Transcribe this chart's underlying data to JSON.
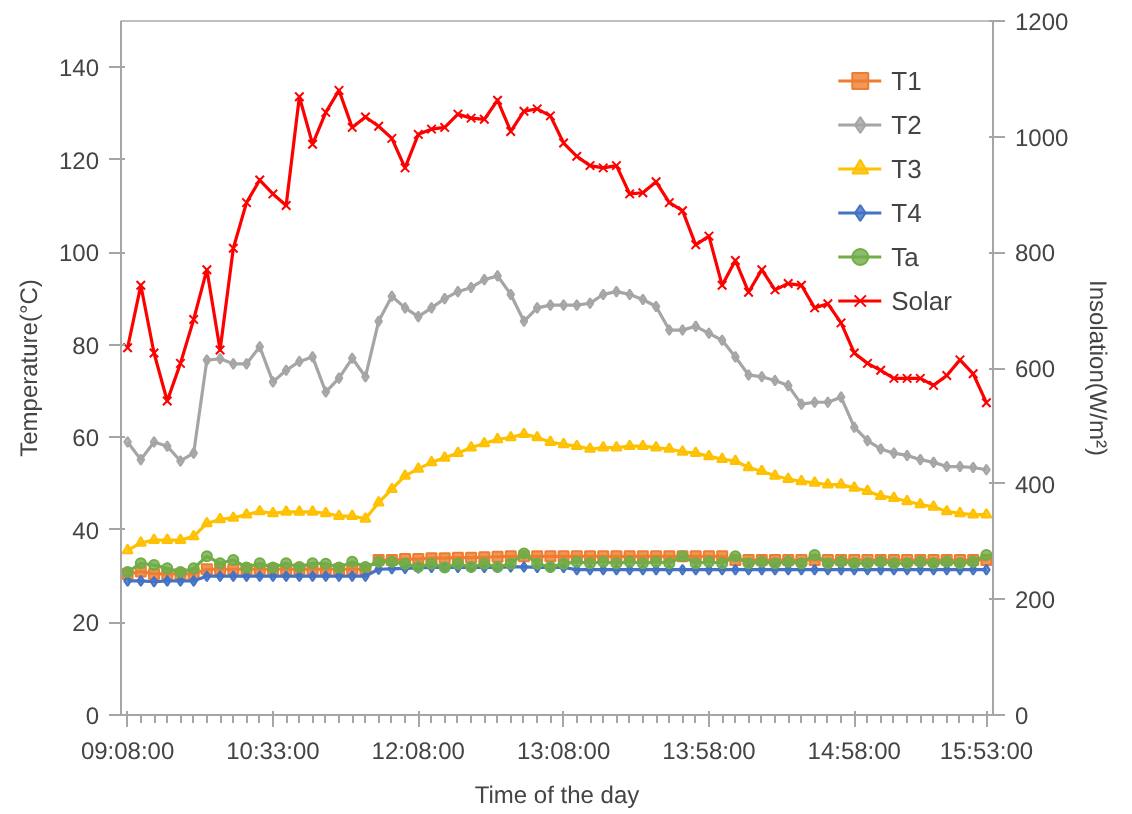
{
  "chart_data": {
    "type": "line",
    "xlabel": "Time of the day",
    "ylabel": "Temperature(°C)",
    "y2label": "Insolation(W/m²)",
    "categories": [
      "09:08:00",
      null,
      null,
      null,
      null,
      null,
      null,
      null,
      null,
      null,
      null,
      "10:33:00",
      null,
      null,
      null,
      null,
      null,
      null,
      null,
      null,
      null,
      null,
      "12:08:00",
      null,
      null,
      null,
      null,
      null,
      null,
      null,
      null,
      null,
      null,
      "13:08:00",
      null,
      null,
      null,
      null,
      null,
      null,
      null,
      null,
      null,
      null,
      "13:58:00",
      null,
      null,
      null,
      null,
      null,
      null,
      null,
      null,
      null,
      null,
      "14:58:00",
      null,
      null,
      null,
      null,
      null,
      null,
      null,
      null,
      null,
      "15:53:00"
    ],
    "ylim": [
      0,
      150
    ],
    "yticks": [
      0,
      20,
      40,
      60,
      80,
      100,
      120,
      140
    ],
    "y2lim": [
      0,
      1200
    ],
    "y2ticks": [
      0,
      200,
      400,
      600,
      800,
      1000,
      1200
    ],
    "grid": false,
    "legend": "top right",
    "series": [
      {
        "name": "T1",
        "color": "#ed7d31",
        "marker": "square",
        "values": [
          30.5,
          31,
          30.5,
          30.5,
          30.5,
          30.5,
          31.5,
          31.5,
          31.5,
          31.5,
          31.5,
          31.5,
          31.5,
          31.5,
          31.5,
          31.5,
          31.5,
          31.5,
          31.5,
          33.5,
          33.5,
          33.7,
          33.7,
          33.9,
          33.9,
          34,
          34,
          34.1,
          34.2,
          34.3,
          34.3,
          34.3,
          34.3,
          34.3,
          34.3,
          34.3,
          34.3,
          34.3,
          34.3,
          34.3,
          34.3,
          34.3,
          34.3,
          34.3,
          34.3,
          34.3,
          33.5,
          33.5,
          33.5,
          33.5,
          33.5,
          33.5,
          33.5,
          33.5,
          33.5,
          33.5,
          33.5,
          33.5,
          33.5,
          33.5,
          33.5,
          33.5,
          33.5,
          33.5,
          33.5,
          33.5
        ]
      },
      {
        "name": "T2",
        "color": "#a5a5a5",
        "marker": "diamond",
        "values": [
          59,
          55.2,
          59,
          58.1,
          54.9,
          56.6,
          76.7,
          77,
          75.9,
          75.9,
          79.6,
          72,
          74.5,
          76.4,
          77.4,
          69.8,
          72.8,
          77.1,
          73.1,
          85.1,
          90.5,
          88,
          86.1,
          88,
          90,
          91.5,
          92.4,
          94.1,
          94.9,
          90.9,
          85.1,
          88,
          88.6,
          88.6,
          88.6,
          89,
          90.9,
          91.5,
          90.9,
          89.8,
          88.3,
          83.2,
          83.2,
          84,
          82.5,
          81,
          77.4,
          73.5,
          73.1,
          72.3,
          71.2,
          67.2,
          67.6,
          67.6,
          68.7,
          62.2,
          59.3,
          57.5,
          56.6,
          56.1,
          55.2,
          54.6,
          53.7,
          53.7,
          53.5,
          53
        ]
      },
      {
        "name": "T3",
        "color": "#ffc000",
        "marker": "triangle",
        "values": [
          35.6,
          37.2,
          37.8,
          37.8,
          37.8,
          38.6,
          41.4,
          42.3,
          42.6,
          43.3,
          44,
          43.6,
          43.9,
          43.9,
          43.9,
          43.6,
          43,
          43,
          42.4,
          45.9,
          48.8,
          51.7,
          53.2,
          54.6,
          55.6,
          56.6,
          57.8,
          58.7,
          59.6,
          60,
          60.7,
          60,
          59,
          58.5,
          58.1,
          57.5,
          57.8,
          57.8,
          58.1,
          58.1,
          57.8,
          57.5,
          56.9,
          56.6,
          55.9,
          55.3,
          54.9,
          53.5,
          52.7,
          51.7,
          51,
          50.5,
          50.2,
          49.8,
          49.8,
          49.1,
          48.4,
          47.3,
          46.9,
          46.2,
          45.5,
          45,
          44,
          43.6,
          43.3,
          43.3
        ]
      },
      {
        "name": "T4",
        "color": "#4472c4",
        "marker": "diamond",
        "values": [
          29,
          29,
          28.8,
          29,
          29,
          29,
          30,
          30,
          30,
          30,
          30,
          30,
          30,
          30,
          30,
          30,
          30,
          30,
          30,
          31.5,
          31.6,
          31.7,
          31.8,
          31.9,
          31.9,
          31.9,
          31.9,
          31.9,
          31.9,
          32,
          32,
          31.9,
          31.9,
          31.9,
          31.4,
          31.4,
          31.4,
          31.4,
          31.4,
          31.4,
          31.4,
          31.4,
          31.4,
          31.4,
          31.4,
          31.4,
          31.4,
          31.4,
          31.4,
          31.4,
          31.4,
          31.4,
          31.4,
          31.4,
          31.4,
          31.4,
          31.4,
          31.4,
          31.4,
          31.4,
          31.4,
          31.4,
          31.4,
          31.4,
          31.4,
          31.4
        ]
      },
      {
        "name": "Ta",
        "color": "#70ad47",
        "marker": "circle",
        "values": [
          30.9,
          32.8,
          32.4,
          31.7,
          30.9,
          31.7,
          34.3,
          32.8,
          33.5,
          31.9,
          32.8,
          31.9,
          32.8,
          32,
          32.8,
          32.7,
          31.9,
          33.1,
          32,
          33.1,
          33.1,
          32.7,
          32,
          32.7,
          31.9,
          32.7,
          32,
          32.7,
          32,
          32.7,
          34.9,
          32.7,
          32,
          32.7,
          33.1,
          32.8,
          33.1,
          32.8,
          33.1,
          32.8,
          33.1,
          32.8,
          34.3,
          32.8,
          33.1,
          32.8,
          34.3,
          32.8,
          33.1,
          32.8,
          33.1,
          32.8,
          34.6,
          32.8,
          33.1,
          32.8,
          32.8,
          33.1,
          32.8,
          32.8,
          33.1,
          32.8,
          33.1,
          32.8,
          33.1,
          34.6
        ]
      },
      {
        "name": "Solar",
        "color": "#ff0000",
        "marker": "cross",
        "axis": "y2",
        "values": [
          635,
          743,
          626,
          543,
          608,
          684,
          770,
          631,
          807,
          886,
          925,
          901,
          881,
          1069,
          987,
          1042,
          1080,
          1016,
          1034,
          1018,
          997,
          946,
          1004,
          1013,
          1016,
          1039,
          1032,
          1030,
          1063,
          1009,
          1044,
          1048,
          1036,
          989,
          966,
          950,
          946,
          950,
          901,
          903,
          922,
          886,
          872,
          813,
          828,
          743,
          786,
          731,
          770,
          735,
          746,
          743,
          704,
          711,
          678,
          626,
          608,
          596,
          582,
          582,
          582,
          570,
          587,
          614,
          590,
          540
        ]
      }
    ]
  }
}
